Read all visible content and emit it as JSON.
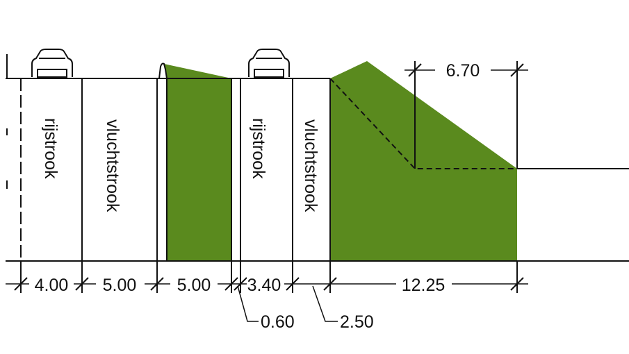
{
  "colors": {
    "green": "#5a8a1e",
    "line": "#111111"
  },
  "lanes": {
    "rijstrook_1": "rijstrook",
    "vluchtstrook_1": "vluchtstrook",
    "rijstrook_2": "rijstrook",
    "vluchtstrook_2": "vluchtstrook"
  },
  "dimensions": {
    "d_400": "4.00",
    "d_500a": "5.00",
    "d_500b": "5.00",
    "d_340": "3.40",
    "d_1225": "12.25",
    "d_670": "6.70",
    "d_060": "0.60",
    "d_250": "2.50"
  },
  "icons": [
    "car-icon",
    "car-icon",
    "barrier-icon"
  ]
}
